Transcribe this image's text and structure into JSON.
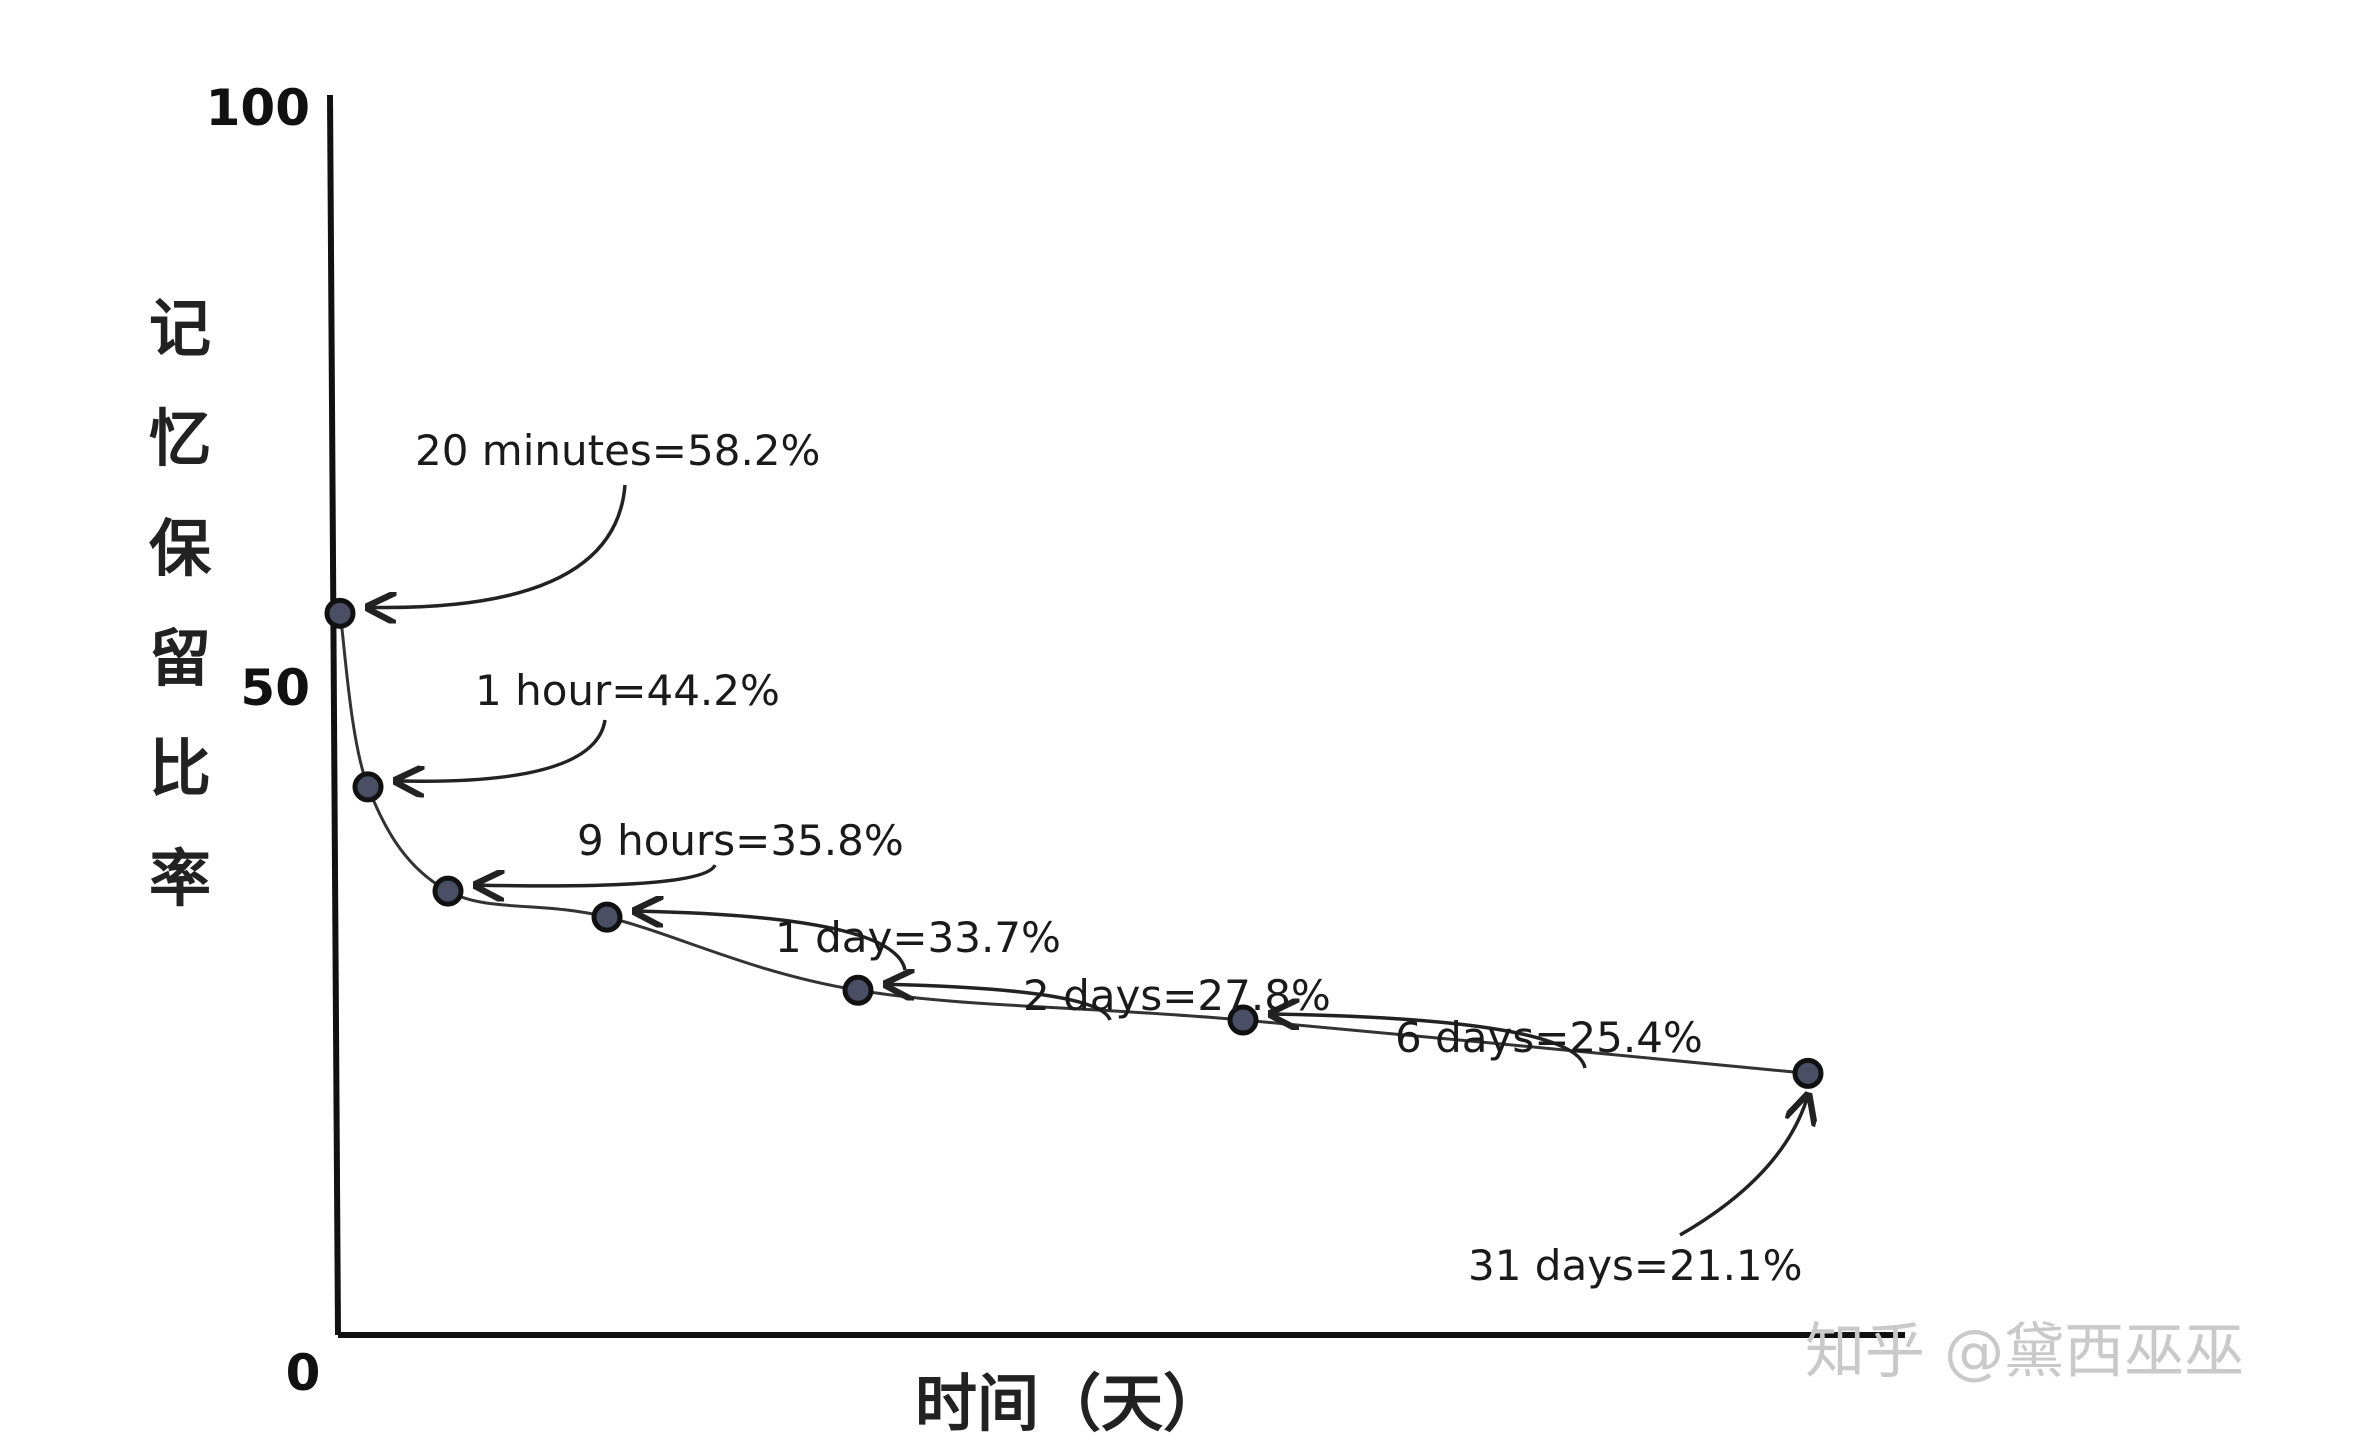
{
  "chart_data": {
    "type": "line",
    "title": "",
    "xlabel": "时间（天）",
    "ylabel": "记忆保留比率",
    "ylim": [
      0,
      100
    ],
    "yticks": [
      "0",
      "50",
      "100"
    ],
    "grid": false,
    "x_days": [
      0.0139,
      0.0417,
      0.375,
      1,
      2,
      6,
      31
    ],
    "points": [
      {
        "label": "20 minutes=58.2%",
        "value": 58.2
      },
      {
        "label": "1 hour=44.2%",
        "value": 44.2
      },
      {
        "label": "9 hours=35.8%",
        "value": 35.8
      },
      {
        "label": "1 day=33.7%",
        "value": 33.7
      },
      {
        "label": "2 days=27.8%",
        "value": 27.8
      },
      {
        "label": "6 days=25.4%",
        "value": 25.4
      },
      {
        "label": "31 days=21.1%",
        "value": 21.1
      }
    ]
  },
  "watermark": "知乎 @黛西巫巫"
}
